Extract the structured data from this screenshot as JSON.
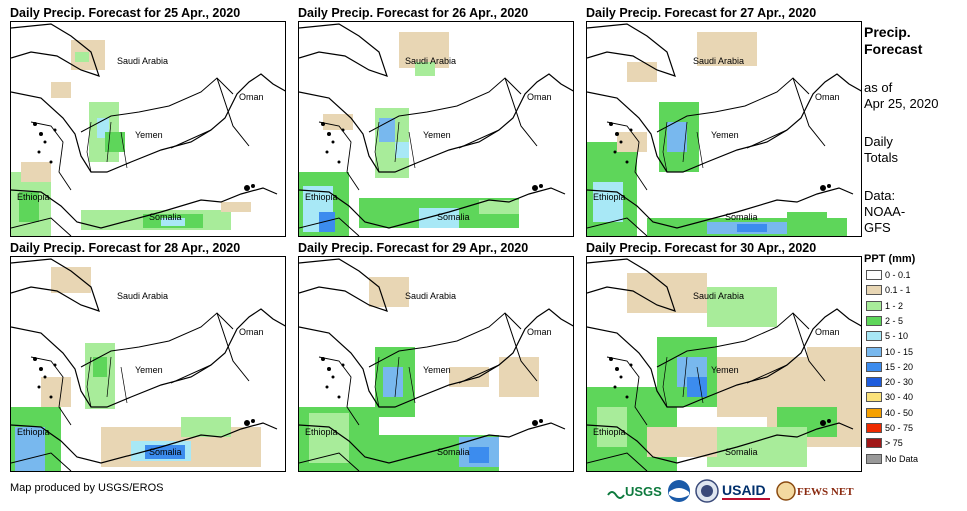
{
  "panels": [
    {
      "title": "Daily Precip. Forecast for 25 Apr., 2020"
    },
    {
      "title": "Daily Precip. Forecast for 26 Apr., 2020"
    },
    {
      "title": "Daily Precip. Forecast for 27 Apr., 2020"
    },
    {
      "title": "Daily Precip. Forecast for 28 Apr., 2020"
    },
    {
      "title": "Daily Precip. Forecast for 29 Apr., 2020"
    },
    {
      "title": "Daily Precip. Forecast for 30 Apr., 2020"
    }
  ],
  "country_labels": {
    "saudi_arabia": "Saudi Arabia",
    "oman": "Oman",
    "yemen": "Yemen",
    "ethiopia": "Ethiopia",
    "somalia": "Somalia"
  },
  "legend": {
    "title_line1": "Precip.",
    "title_line2": "Forecast",
    "as_of_line1": "as of",
    "as_of_line2": "Apr 25, 2020",
    "daily_line1": "Daily",
    "daily_line2": "Totals",
    "data_line1": "Data:",
    "data_line2": "NOAA-",
    "data_line3": "GFS",
    "ppt_title": "PPT (mm)",
    "classes": [
      {
        "label": "0 - 0.1",
        "color": "#ffffff"
      },
      {
        "label": "0.1 - 1",
        "color": "#e8d6b4"
      },
      {
        "label": "1 - 2",
        "color": "#a8ec9a"
      },
      {
        "label": "2 - 5",
        "color": "#5ed65a"
      },
      {
        "label": "5 - 10",
        "color": "#a8e8f6"
      },
      {
        "label": "10 - 15",
        "color": "#78b8ee"
      },
      {
        "label": "15 - 20",
        "color": "#3c8cee"
      },
      {
        "label": "20 - 30",
        "color": "#1e5cdc"
      },
      {
        "label": "30 - 40",
        "color": "#fbe27a"
      },
      {
        "label": "40 - 50",
        "color": "#f5a000"
      },
      {
        "label": "50 - 75",
        "color": "#ee2a00"
      },
      {
        "label": "> 75",
        "color": "#a01818"
      },
      {
        "label": "No Data",
        "color": "#999999"
      }
    ]
  },
  "footer": {
    "credit": "Map produced by USGS/EROS"
  },
  "logos": {
    "usgs": "USGS",
    "usaid": "USAID",
    "fews": "FEWS NET"
  }
}
